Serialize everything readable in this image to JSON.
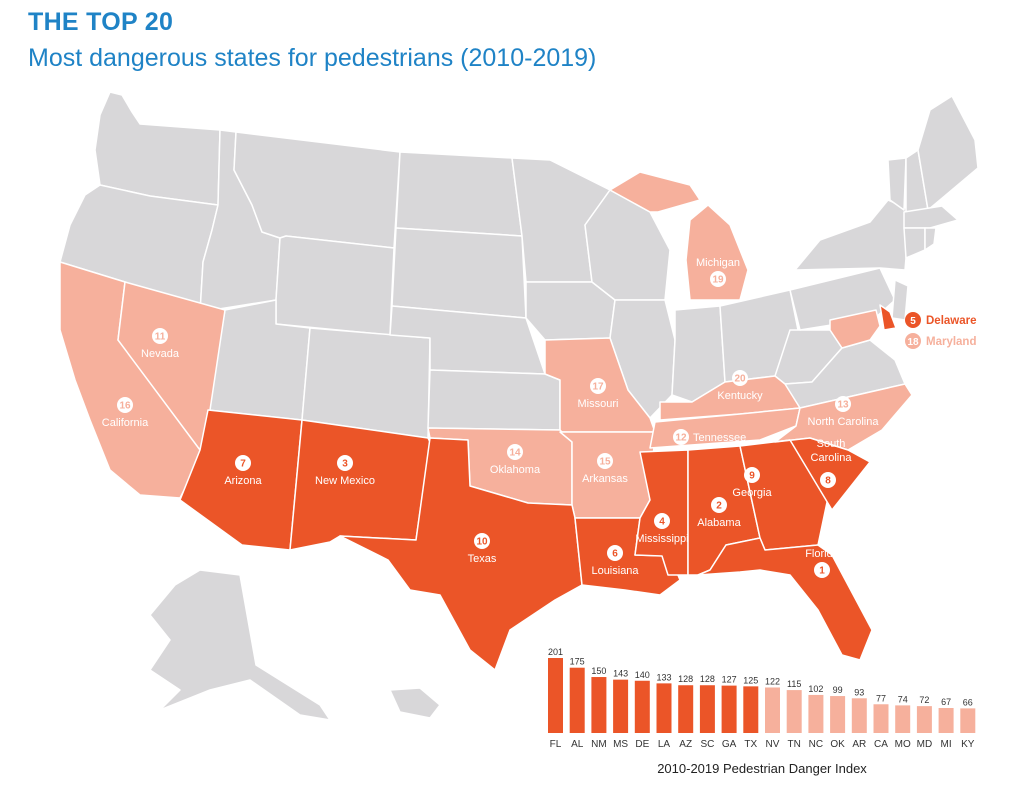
{
  "title": "THE TOP 20",
  "subtitle": "Most dangerous states for pedestrians (2010-2019)",
  "colors": {
    "dark": "#eb5528",
    "light": "#f6b09c",
    "gray": "#d8d7d9",
    "title": "#1f83c6"
  },
  "states": {
    "FL": {
      "rank": "1",
      "name": "Florida"
    },
    "AL": {
      "rank": "2",
      "name": "Alabama"
    },
    "NM": {
      "rank": "3",
      "name": "New Mexico"
    },
    "MS": {
      "rank": "4",
      "name": "Mississippi"
    },
    "DE": {
      "rank": "5",
      "name": "Delaware"
    },
    "LA": {
      "rank": "6",
      "name": "Louisiana"
    },
    "AZ": {
      "rank": "7",
      "name": "Arizona"
    },
    "SC": {
      "rank": "8",
      "name_line1": "South",
      "name_line2": "Carolina"
    },
    "GA": {
      "rank": "9",
      "name": "Georgia"
    },
    "TX": {
      "rank": "10",
      "name": "Texas"
    },
    "NV": {
      "rank": "11",
      "name": "Nevada"
    },
    "TN": {
      "rank": "12",
      "name": "Tennessee"
    },
    "NC": {
      "rank": "13",
      "name": "North Carolina"
    },
    "OK": {
      "rank": "14",
      "name": "Oklahoma"
    },
    "AR": {
      "rank": "15",
      "name": "Arkansas"
    },
    "CA": {
      "rank": "16",
      "name": "California"
    },
    "MO": {
      "rank": "17",
      "name": "Missouri"
    },
    "MD": {
      "rank": "18",
      "name": "Maryland"
    },
    "MI": {
      "rank": "19",
      "name": "Michigan"
    },
    "KY": {
      "rank": "20",
      "name": "Kentucky"
    }
  },
  "chart_data": {
    "type": "bar",
    "xlabel": "2010-2019 Pedestrian Danger Index",
    "categories": [
      "FL",
      "AL",
      "NM",
      "MS",
      "DE",
      "LA",
      "AZ",
      "SC",
      "GA",
      "TX",
      "NV",
      "TN",
      "NC",
      "OK",
      "AR",
      "CA",
      "MO",
      "MD",
      "MI",
      "KY"
    ],
    "values": [
      201,
      175,
      150,
      143,
      140,
      133,
      128,
      128,
      127,
      125,
      122,
      115,
      102,
      99,
      93,
      77,
      74,
      72,
      67,
      66
    ],
    "top_count_dark": 10,
    "ylim": [
      0,
      201
    ]
  }
}
